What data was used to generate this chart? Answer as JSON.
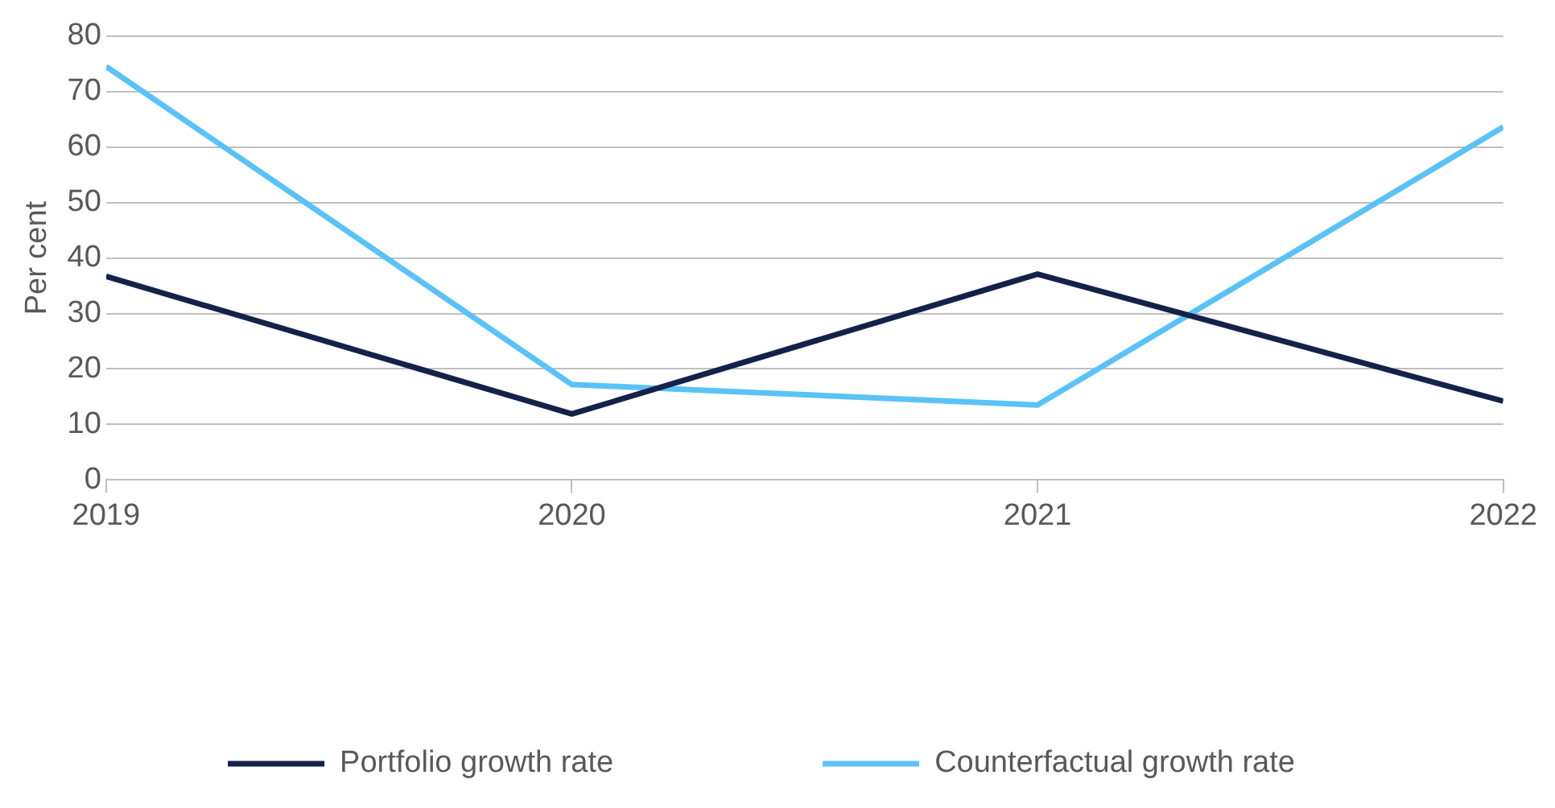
{
  "chart_data": {
    "type": "line",
    "ylabel": "Per cent",
    "x": [
      2019,
      2020,
      2021,
      2022
    ],
    "xlim": [
      2019,
      2022
    ],
    "xticks": [
      2019,
      2020,
      2021,
      2022
    ],
    "ylim": [
      0,
      80
    ],
    "yticks": [
      0,
      10,
      20,
      30,
      40,
      50,
      60,
      70,
      80
    ],
    "grid": "y",
    "legend": "bottom",
    "marker": "none",
    "line_style": "solid",
    "series": [
      {
        "name": "Portfolio growth rate",
        "color": "#14224a",
        "values": [
          36.7,
          11.9,
          37.1,
          14.2
        ]
      },
      {
        "name": "Counterfactual growth rate",
        "color": "#5bc2f7",
        "values": [
          74.5,
          17.2,
          13.5,
          63.6
        ]
      }
    ]
  }
}
